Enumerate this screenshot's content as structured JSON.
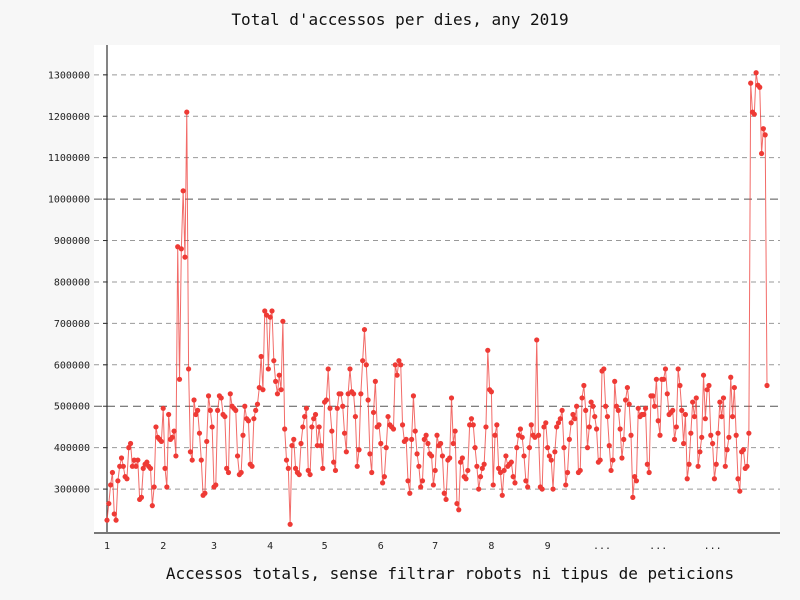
{
  "chart_data": {
    "type": "line",
    "title": "Total d'accessos per dies, any 2019",
    "xlabel": "Accessos totals, sense filtrar robots ni tipus de peticions",
    "ylabel": "",
    "ylim": [
      194000,
      1372000
    ],
    "yticks": [
      300000,
      400000,
      500000,
      600000,
      700000,
      800000,
      900000,
      1000000,
      1100000,
      1200000,
      1300000
    ],
    "ytick_labels": [
      "300000",
      "400000",
      "500000",
      "600000",
      "700000",
      "800000",
      "900000",
      "1000000",
      "1100000",
      "1200000",
      "1300000"
    ],
    "xtick_labels": [
      "1",
      "2",
      "3",
      "4",
      "5",
      "6",
      "7",
      "8",
      "9",
      "...",
      "...",
      "..."
    ],
    "xtick_days": [
      0,
      31,
      59,
      90,
      120,
      151,
      181,
      212,
      243,
      273,
      304,
      334
    ],
    "grid": true,
    "series_color": "#ee3a35",
    "values_unit": "thousands of accesses per day (day 1 = 1 Jan)",
    "values_thousands": [
      225,
      265,
      310,
      340,
      240,
      225,
      320,
      355,
      375,
      355,
      330,
      325,
      400,
      410,
      355,
      370,
      355,
      370,
      275,
      280,
      350,
      360,
      365,
      355,
      350,
      260,
      305,
      450,
      425,
      420,
      415,
      495,
      350,
      305,
      480,
      420,
      425,
      440,
      380,
      885,
      565,
      880,
      1020,
      860,
      1210,
      590,
      390,
      370,
      515,
      480,
      490,
      435,
      370,
      285,
      290,
      415,
      525,
      490,
      450,
      305,
      310,
      490,
      525,
      520,
      480,
      475,
      350,
      340,
      530,
      500,
      495,
      490,
      380,
      335,
      340,
      430,
      500,
      470,
      465,
      360,
      355,
      470,
      490,
      505,
      545,
      620,
      540,
      730,
      720,
      590,
      715,
      730,
      610,
      560,
      530,
      575,
      540,
      705,
      445,
      370,
      350,
      215,
      405,
      420,
      350,
      340,
      335,
      410,
      450,
      475,
      495,
      345,
      335,
      450,
      470,
      480,
      405,
      450,
      405,
      350,
      510,
      515,
      590,
      495,
      440,
      365,
      345,
      495,
      530,
      530,
      500,
      435,
      390,
      530,
      590,
      535,
      530,
      475,
      355,
      395,
      530,
      610,
      685,
      600,
      515,
      385,
      340,
      485,
      560,
      450,
      455,
      410,
      315,
      330,
      400,
      475,
      455,
      450,
      445,
      600,
      575,
      610,
      600,
      455,
      415,
      420,
      320,
      290,
      420,
      525,
      440,
      385,
      355,
      305,
      320,
      420,
      430,
      410,
      385,
      380,
      310,
      345,
      430,
      405,
      410,
      380,
      290,
      275,
      370,
      375,
      520,
      410,
      440,
      265,
      250,
      365,
      375,
      330,
      325,
      345,
      455,
      470,
      455,
      400,
      355,
      300,
      330,
      350,
      360,
      450,
      635,
      540,
      535,
      310,
      430,
      455,
      350,
      340,
      285,
      345,
      380,
      355,
      360,
      365,
      330,
      315,
      400,
      430,
      445,
      425,
      380,
      320,
      305,
      400,
      455,
      430,
      425,
      660,
      430,
      305,
      300,
      450,
      460,
      400,
      380,
      370,
      300,
      390,
      450,
      460,
      470,
      490,
      400,
      310,
      340,
      420,
      460,
      480,
      470,
      500,
      340,
      345,
      520,
      550,
      490,
      400,
      450,
      510,
      500,
      475,
      445,
      365,
      370,
      585,
      590,
      500,
      475,
      405,
      345,
      370,
      560,
      500,
      490,
      445,
      375,
      420,
      515,
      545,
      505,
      430,
      280,
      330,
      320,
      495,
      475,
      480,
      480,
      495,
      360,
      340,
      525,
      525,
      500,
      565,
      465,
      430,
      565,
      565,
      590,
      530,
      480,
      485,
      490,
      420,
      450,
      590,
      550,
      490,
      410,
      480,
      325,
      360,
      435,
      510,
      475,
      520,
      355,
      390,
      425,
      575,
      470,
      540,
      550,
      430,
      410,
      325,
      360,
      435,
      510,
      475,
      520,
      355,
      395,
      425,
      570,
      475,
      545,
      430,
      325,
      295,
      390,
      395,
      350,
      355,
      435,
      1280,
      1210,
      1205,
      1305,
      1275,
      1270,
      1110,
      1170,
      1155,
      550
    ]
  }
}
